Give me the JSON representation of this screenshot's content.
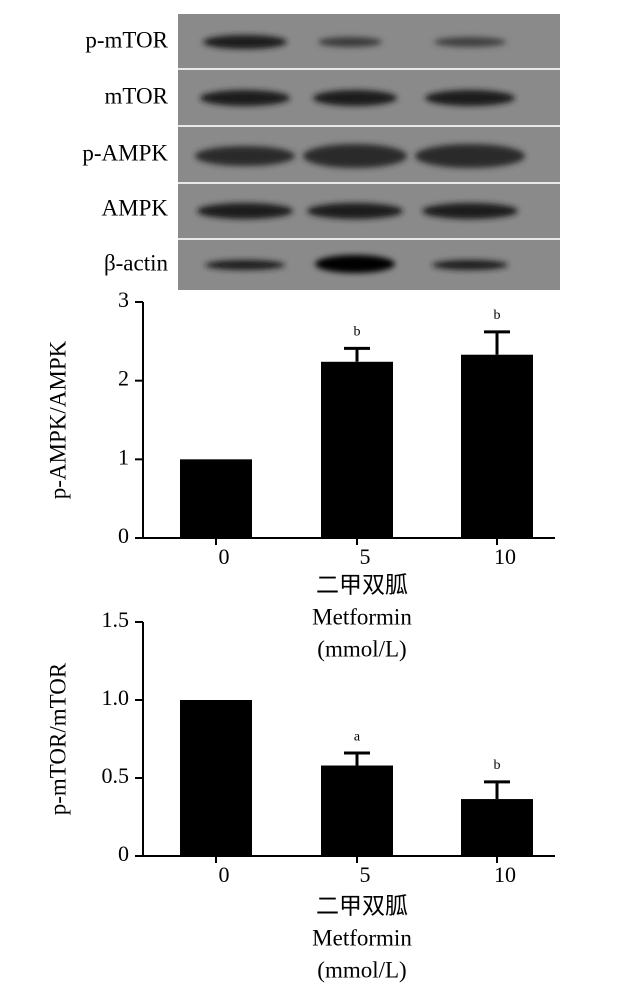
{
  "blot": {
    "labels": [
      "p-mTOR",
      "mTOR",
      "p-AMPK",
      "AMPK",
      "β-actin"
    ]
  },
  "chart_data": [
    {
      "type": "bar",
      "ylabel": "p-AMPK/AMPK",
      "categories": [
        "0",
        "5",
        "10"
      ],
      "values": [
        1.0,
        2.24,
        2.33
      ],
      "errors": [
        0,
        0.17,
        0.29
      ],
      "annotations": [
        null,
        "b",
        "b"
      ],
      "color": "#000000",
      "ylim": [
        0,
        3
      ],
      "yticks": [
        0,
        1,
        2,
        3
      ],
      "xlabel": [
        "二甲双胍",
        "Metformin",
        "(mmol/L)"
      ]
    },
    {
      "type": "bar",
      "ylabel": "p-mTOR/mTOR",
      "categories": [
        "0",
        "5",
        "10"
      ],
      "values": [
        1.0,
        0.58,
        0.365
      ],
      "errors": [
        0,
        0.08,
        0.11
      ],
      "annotations": [
        null,
        "a",
        "b"
      ],
      "color": "#000000",
      "ylim": [
        0,
        1.5
      ],
      "yticks": [
        0,
        0.5,
        {
          "value": 1,
          "label": "1.0"
        },
        1.5
      ],
      "xlabel": [
        "二甲双胍",
        "Metformin",
        "(mmol/L)"
      ]
    }
  ]
}
